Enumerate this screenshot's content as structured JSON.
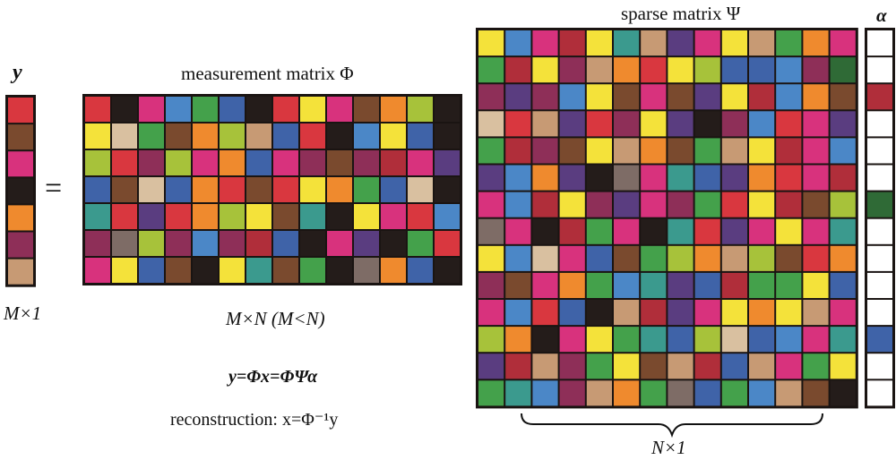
{
  "labels": {
    "y_vector": "y",
    "y_size": "M×1",
    "equals": "=",
    "phi_title": "measurement matrix Φ",
    "phi_size": "M×N (M<N)",
    "psi_title": "sparse matrix Ψ",
    "alpha_vector": "α",
    "n_size": "N×1",
    "equation": "y=Φx=ΦΨα",
    "reconstruction": "reconstruction: x=Φ⁻¹y"
  },
  "palette": {
    "red": "#d9373f",
    "brown": "#7a4a2e",
    "magenta": "#d8327d",
    "black": "#241c1a",
    "orange": "#ef8a2e",
    "plum": "#8e2f58",
    "tan": "#c79a74",
    "blue": "#4b87c7",
    "green": "#44a14b",
    "royal": "#3f63a8",
    "yellow": "#f4e23a",
    "lime": "#a7c23a",
    "teal": "#3b9a8e",
    "purple": "#5a3d80",
    "crimson": "#b02e3a",
    "gray": "#7e6c66",
    "peach": "#f2a85c",
    "darkgreen": "#2f6a36",
    "white": "#ffffff",
    "beige": "#d9c0a0"
  },
  "matrices": {
    "y": [
      [
        "red"
      ],
      [
        "brown"
      ],
      [
        "magenta"
      ],
      [
        "black"
      ],
      [
        "orange"
      ],
      [
        "plum"
      ],
      [
        "tan"
      ]
    ],
    "phi": [
      [
        "red",
        "black",
        "magenta",
        "blue",
        "green",
        "royal",
        "black",
        "red",
        "yellow",
        "magenta",
        "brown",
        "orange",
        "lime",
        "black"
      ],
      [
        "yellow",
        "beige",
        "green",
        "brown",
        "orange",
        "lime",
        "tan",
        "royal",
        "red",
        "black",
        "blue",
        "yellow",
        "royal",
        "black"
      ],
      [
        "lime",
        "red",
        "plum",
        "lime",
        "magenta",
        "orange",
        "royal",
        "magenta",
        "plum",
        "brown",
        "plum",
        "crimson",
        "magenta",
        "purple"
      ],
      [
        "royal",
        "brown",
        "beige",
        "royal",
        "orange",
        "red",
        "brown",
        "red",
        "yellow",
        "orange",
        "green",
        "royal",
        "beige",
        "black"
      ],
      [
        "teal",
        "red",
        "purple",
        "red",
        "orange",
        "lime",
        "yellow",
        "brown",
        "teal",
        "black",
        "yellow",
        "magenta",
        "red",
        "blue"
      ],
      [
        "plum",
        "gray",
        "lime",
        "plum",
        "blue",
        "plum",
        "crimson",
        "royal",
        "black",
        "magenta",
        "purple",
        "black",
        "green",
        "red"
      ],
      [
        "magenta",
        "yellow",
        "royal",
        "brown",
        "black",
        "yellow",
        "teal",
        "brown",
        "green",
        "black",
        "gray",
        "orange",
        "royal",
        "black"
      ]
    ],
    "psi": [
      [
        "yellow",
        "blue",
        "magenta",
        "crimson",
        "yellow",
        "teal",
        "tan",
        "purple",
        "magenta",
        "yellow",
        "tan",
        "green",
        "orange",
        "magenta"
      ],
      [
        "green",
        "crimson",
        "yellow",
        "plum",
        "tan",
        "orange",
        "red",
        "yellow",
        "lime",
        "royal",
        "royal",
        "blue",
        "plum",
        "darkgreen"
      ],
      [
        "plum",
        "purple",
        "plum",
        "blue",
        "yellow",
        "brown",
        "magenta",
        "brown",
        "purple",
        "yellow",
        "crimson",
        "blue",
        "orange",
        "brown"
      ],
      [
        "beige",
        "red",
        "tan",
        "purple",
        "red",
        "plum",
        "yellow",
        "purple",
        "black",
        "plum",
        "blue",
        "red",
        "magenta",
        "purple"
      ],
      [
        "green",
        "crimson",
        "plum",
        "brown",
        "yellow",
        "tan",
        "orange",
        "brown",
        "green",
        "tan",
        "yellow",
        "crimson",
        "magenta",
        "blue"
      ],
      [
        "purple",
        "blue",
        "orange",
        "purple",
        "black",
        "gray",
        "magenta",
        "teal",
        "royal",
        "purple",
        "orange",
        "red",
        "magenta",
        "crimson"
      ],
      [
        "magenta",
        "blue",
        "crimson",
        "yellow",
        "plum",
        "purple",
        "magenta",
        "plum",
        "green",
        "red",
        "yellow",
        "crimson",
        "brown",
        "lime"
      ],
      [
        "gray",
        "magenta",
        "black",
        "crimson",
        "green",
        "magenta",
        "black",
        "teal",
        "red",
        "purple",
        "magenta",
        "yellow",
        "magenta",
        "teal"
      ],
      [
        "yellow",
        "blue",
        "beige",
        "magenta",
        "royal",
        "brown",
        "green",
        "lime",
        "orange",
        "tan",
        "lime",
        "brown",
        "red",
        "orange"
      ],
      [
        "plum",
        "brown",
        "magenta",
        "orange",
        "green",
        "blue",
        "teal",
        "purple",
        "royal",
        "crimson",
        "green",
        "green",
        "yellow",
        "royal"
      ],
      [
        "magenta",
        "blue",
        "red",
        "royal",
        "black",
        "tan",
        "crimson",
        "purple",
        "magenta",
        "yellow",
        "orange",
        "yellow",
        "tan",
        "magenta"
      ],
      [
        "lime",
        "orange",
        "black",
        "magenta",
        "yellow",
        "green",
        "teal",
        "royal",
        "lime",
        "beige",
        "royal",
        "blue",
        "magenta",
        "teal"
      ],
      [
        "purple",
        "crimson",
        "tan",
        "plum",
        "green",
        "yellow",
        "brown",
        "tan",
        "crimson",
        "royal",
        "tan",
        "magenta",
        "green",
        "yellow"
      ],
      [
        "green",
        "teal",
        "blue",
        "plum",
        "tan",
        "orange",
        "green",
        "gray",
        "royal",
        "green",
        "blue",
        "tan",
        "brown",
        "black"
      ]
    ],
    "alpha": [
      [
        "white"
      ],
      [
        "white"
      ],
      [
        "crimson"
      ],
      [
        "white"
      ],
      [
        "white"
      ],
      [
        "white"
      ],
      [
        "darkgreen"
      ],
      [
        "white"
      ],
      [
        "white"
      ],
      [
        "white"
      ],
      [
        "white"
      ],
      [
        "royal"
      ],
      [
        "white"
      ],
      [
        "white"
      ]
    ]
  }
}
